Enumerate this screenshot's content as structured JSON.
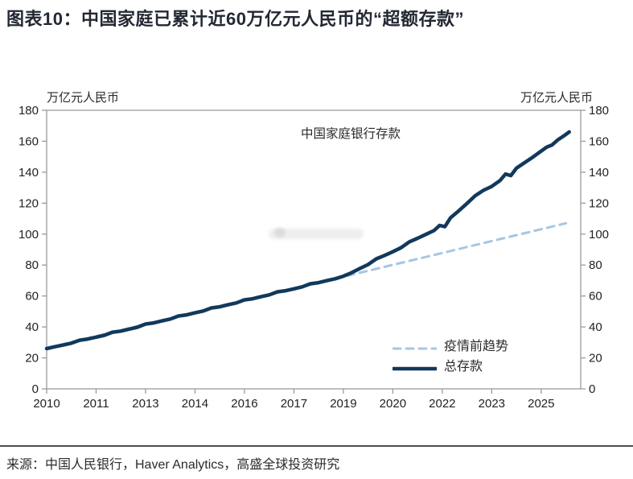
{
  "header": {
    "title": "图表10：中国家庭已累计近60万亿元人民币的“超额存款”"
  },
  "chart": {
    "unit_left": "万亿元人民币",
    "unit_right": "万亿元人民币",
    "annotation": "中国家庭银行存款"
  },
  "legend": {
    "items": [
      {
        "label": "疫情前趋势"
      },
      {
        "label": "总存款"
      }
    ]
  },
  "footer": {
    "source": "来源：中国人民银行，Haver Analytics，高盛全球投资研究"
  },
  "colors": {
    "total_line": "#12395c",
    "trend_line": "#a7c6e2",
    "axis": "#9b9b9b",
    "tick_text": "#222222",
    "title_text": "#232833"
  },
  "chart_data": {
    "type": "line",
    "title": "中国家庭银行存款",
    "ylabel": "万亿元人民币",
    "xlim": [
      2010,
      2026.2
    ],
    "ylim": [
      0,
      180
    ],
    "grid": false,
    "legend_position": "inside-lower-right",
    "y_ticks": [
      0,
      20,
      40,
      60,
      80,
      100,
      120,
      140,
      160,
      180
    ],
    "x_ticks": [
      {
        "t": 2010.0,
        "label": "2010"
      },
      {
        "t": 2011.5,
        "label": "2011"
      },
      {
        "t": 2013.0,
        "label": "2013"
      },
      {
        "t": 2014.5,
        "label": "2014"
      },
      {
        "t": 2016.0,
        "label": "2016"
      },
      {
        "t": 2017.5,
        "label": "2017"
      },
      {
        "t": 2019.0,
        "label": "2019"
      },
      {
        "t": 2020.5,
        "label": "2020"
      },
      {
        "t": 2022.0,
        "label": "2022"
      },
      {
        "t": 2023.5,
        "label": "2023"
      },
      {
        "t": 2025.0,
        "label": "2025"
      }
    ],
    "series": [
      {
        "name": "疫情前趋势",
        "style": "dashed",
        "color": "#a7c6e2",
        "width": 3,
        "dash": "9 7",
        "points": [
          [
            2010.0,
            26.3
          ],
          [
            2025.75,
            107.0
          ]
        ]
      },
      {
        "name": "总存款",
        "style": "solid",
        "color": "#12395c",
        "width": 4.5,
        "points": [
          [
            2010.0,
            26.0
          ],
          [
            2010.25,
            27.2
          ],
          [
            2010.5,
            28.3
          ],
          [
            2010.75,
            29.5
          ],
          [
            2011.0,
            31.4
          ],
          [
            2011.25,
            32.2
          ],
          [
            2011.5,
            33.4
          ],
          [
            2011.75,
            34.6
          ],
          [
            2012.0,
            36.6
          ],
          [
            2012.25,
            37.3
          ],
          [
            2012.5,
            38.6
          ],
          [
            2012.75,
            39.8
          ],
          [
            2013.0,
            41.9
          ],
          [
            2013.25,
            42.6
          ],
          [
            2013.5,
            43.9
          ],
          [
            2013.75,
            45.1
          ],
          [
            2014.0,
            47.1
          ],
          [
            2014.25,
            47.8
          ],
          [
            2014.5,
            49.1
          ],
          [
            2014.75,
            50.3
          ],
          [
            2015.0,
            52.3
          ],
          [
            2015.25,
            53.0
          ],
          [
            2015.5,
            54.3
          ],
          [
            2015.75,
            55.5
          ],
          [
            2016.0,
            57.5
          ],
          [
            2016.25,
            58.2
          ],
          [
            2016.5,
            59.5
          ],
          [
            2016.75,
            60.7
          ],
          [
            2017.0,
            62.7
          ],
          [
            2017.25,
            63.4
          ],
          [
            2017.5,
            64.6
          ],
          [
            2017.75,
            65.9
          ],
          [
            2018.0,
            67.9
          ],
          [
            2018.25,
            68.6
          ],
          [
            2018.5,
            69.9
          ],
          [
            2018.75,
            71.1
          ],
          [
            2019.0,
            72.8
          ],
          [
            2019.25,
            75.0
          ],
          [
            2019.5,
            77.8
          ],
          [
            2019.75,
            80.3
          ],
          [
            2020.0,
            84.0
          ],
          [
            2020.25,
            86.2
          ],
          [
            2020.5,
            88.6
          ],
          [
            2020.75,
            91.2
          ],
          [
            2021.0,
            95.0
          ],
          [
            2021.25,
            97.3
          ],
          [
            2021.5,
            99.8
          ],
          [
            2021.75,
            102.3
          ],
          [
            2021.92,
            105.6
          ],
          [
            2022.08,
            104.8
          ],
          [
            2022.25,
            110.5
          ],
          [
            2022.5,
            115.0
          ],
          [
            2022.75,
            119.8
          ],
          [
            2023.0,
            124.8
          ],
          [
            2023.25,
            128.3
          ],
          [
            2023.5,
            130.8
          ],
          [
            2023.75,
            134.6
          ],
          [
            2023.92,
            138.8
          ],
          [
            2024.08,
            137.8
          ],
          [
            2024.25,
            142.6
          ],
          [
            2024.5,
            146.2
          ],
          [
            2024.75,
            149.8
          ],
          [
            2025.0,
            153.6
          ],
          [
            2025.17,
            156.2
          ],
          [
            2025.33,
            157.6
          ],
          [
            2025.5,
            160.8
          ],
          [
            2025.67,
            163.2
          ],
          [
            2025.85,
            166.0
          ]
        ]
      }
    ]
  }
}
